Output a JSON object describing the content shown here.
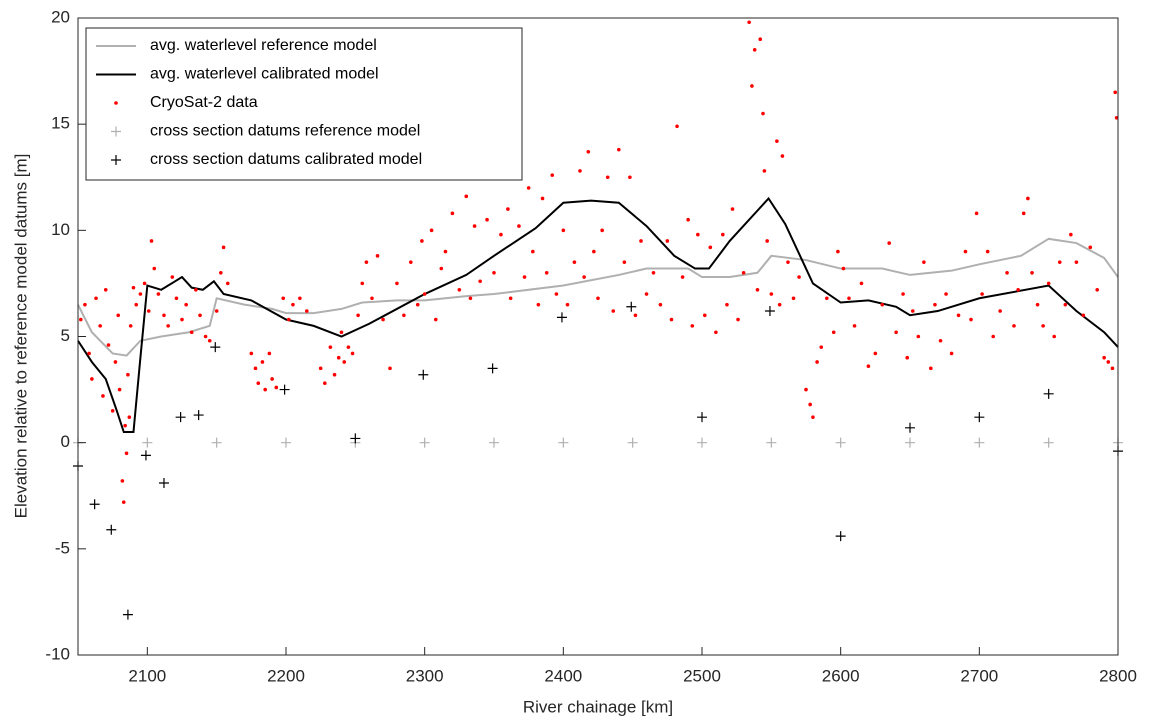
{
  "chart_data": {
    "type": "scatter",
    "x_label": "River chainage [km]",
    "y_label": "Elevation relative to reference model datums [m]",
    "xlim": [
      2050,
      2800
    ],
    "ylim": [
      -10,
      20
    ],
    "xticks": [
      2100,
      2200,
      2300,
      2400,
      2500,
      2600,
      2700,
      2800
    ],
    "yticks": [
      -10,
      -5,
      0,
      5,
      10,
      15,
      20
    ],
    "grid": false,
    "legend": "upper left",
    "series": [
      {
        "name": "avg. waterlevel reference model",
        "color": "#b0b0b0",
        "style": "line",
        "x": [
          2050,
          2060,
          2075,
          2085,
          2095,
          2110,
          2130,
          2145,
          2150,
          2170,
          2190,
          2200,
          2220,
          2240,
          2255,
          2280,
          2300,
          2330,
          2350,
          2400,
          2440,
          2460,
          2490,
          2500,
          2520,
          2540,
          2550,
          2575,
          2600,
          2630,
          2650,
          2680,
          2700,
          2730,
          2750,
          2770,
          2790,
          2800
        ],
        "values": [
          6.5,
          5.2,
          4.2,
          4.1,
          4.8,
          5.0,
          5.2,
          5.5,
          6.8,
          6.5,
          6.3,
          6.1,
          6.1,
          6.3,
          6.6,
          6.7,
          6.7,
          6.9,
          7.0,
          7.4,
          7.9,
          8.2,
          8.2,
          7.8,
          7.8,
          8.0,
          8.8,
          8.6,
          8.2,
          8.2,
          7.9,
          8.1,
          8.4,
          8.8,
          9.6,
          9.4,
          8.7,
          7.8
        ]
      },
      {
        "name": "avg. waterlevel calibrated model",
        "color": "#000000",
        "style": "line",
        "x": [
          2050,
          2060,
          2070,
          2078,
          2083,
          2090,
          2095,
          2100,
          2110,
          2120,
          2125,
          2132,
          2140,
          2148,
          2155,
          2175,
          2200,
          2220,
          2240,
          2260,
          2300,
          2330,
          2350,
          2380,
          2400,
          2420,
          2440,
          2460,
          2480,
          2495,
          2505,
          2520,
          2548,
          2560,
          2580,
          2600,
          2620,
          2640,
          2650,
          2670,
          2700,
          2750,
          2770,
          2790,
          2800
        ],
        "values": [
          4.8,
          3.8,
          3.0,
          1.5,
          0.5,
          0.5,
          4.0,
          7.4,
          7.2,
          7.6,
          7.8,
          7.3,
          7.2,
          7.6,
          7.0,
          6.7,
          5.8,
          5.5,
          5.0,
          5.6,
          7.0,
          7.9,
          8.8,
          10.1,
          11.3,
          11.4,
          11.3,
          10.2,
          8.8,
          8.2,
          8.2,
          9.5,
          11.5,
          10.3,
          7.5,
          6.6,
          6.7,
          6.4,
          6.0,
          6.2,
          6.8,
          7.4,
          6.2,
          5.2,
          4.5
        ]
      },
      {
        "name": "CryoSat-2 data",
        "color": "#ff0000",
        "style": "dot",
        "x": [
          2052,
          2055,
          2058,
          2060,
          2063,
          2066,
          2068,
          2070,
          2072,
          2075,
          2077,
          2079,
          2080,
          2082,
          2083,
          2084,
          2085,
          2086,
          2087,
          2088,
          2090,
          2092,
          2095,
          2098,
          2101,
          2103,
          2105,
          2108,
          2112,
          2115,
          2118,
          2121,
          2125,
          2128,
          2132,
          2135,
          2138,
          2142,
          2145,
          2150,
          2153,
          2155,
          2158,
          2175,
          2178,
          2180,
          2183,
          2185,
          2188,
          2190,
          2193,
          2198,
          2202,
          2205,
          2210,
          2215,
          2225,
          2228,
          2232,
          2235,
          2238,
          2240,
          2242,
          2245,
          2248,
          2252,
          2255,
          2258,
          2262,
          2266,
          2270,
          2275,
          2280,
          2285,
          2290,
          2295,
          2298,
          2300,
          2305,
          2308,
          2312,
          2315,
          2320,
          2325,
          2330,
          2333,
          2336,
          2340,
          2345,
          2350,
          2355,
          2360,
          2362,
          2368,
          2372,
          2375,
          2378,
          2382,
          2385,
          2388,
          2392,
          2395,
          2400,
          2403,
          2408,
          2412,
          2415,
          2418,
          2422,
          2425,
          2428,
          2432,
          2436,
          2440,
          2444,
          2448,
          2452,
          2456,
          2460,
          2465,
          2470,
          2475,
          2478,
          2482,
          2486,
          2490,
          2493,
          2497,
          2502,
          2506,
          2510,
          2515,
          2518,
          2522,
          2526,
          2530,
          2534,
          2536,
          2538,
          2540,
          2542,
          2544,
          2545,
          2547,
          2550,
          2554,
          2556,
          2558,
          2562,
          2566,
          2570,
          2575,
          2578,
          2580,
          2583,
          2586,
          2590,
          2595,
          2598,
          2602,
          2606,
          2610,
          2615,
          2620,
          2625,
          2630,
          2635,
          2640,
          2645,
          2648,
          2652,
          2656,
          2660,
          2665,
          2668,
          2672,
          2676,
          2680,
          2685,
          2690,
          2694,
          2698,
          2702,
          2706,
          2710,
          2715,
          2720,
          2725,
          2728,
          2732,
          2735,
          2738,
          2742,
          2746,
          2750,
          2754,
          2758,
          2762,
          2766,
          2770,
          2775,
          2780,
          2785,
          2790,
          2793,
          2796,
          2798,
          2799
        ],
        "values": [
          5.8,
          6.5,
          4.2,
          3.0,
          6.8,
          5.5,
          2.2,
          7.2,
          4.6,
          1.5,
          3.8,
          6.0,
          2.5,
          -1.8,
          -2.8,
          0.8,
          -0.5,
          3.2,
          1.2,
          5.5,
          7.3,
          6.5,
          7.0,
          7.5,
          6.2,
          9.5,
          8.2,
          7.0,
          6.0,
          5.5,
          7.8,
          6.8,
          5.8,
          6.5,
          5.2,
          7.2,
          6.0,
          5.0,
          4.8,
          6.2,
          8.0,
          9.2,
          7.5,
          4.2,
          3.5,
          2.8,
          3.8,
          2.5,
          4.2,
          3.0,
          2.6,
          6.8,
          5.8,
          6.5,
          6.8,
          6.2,
          3.5,
          2.8,
          4.5,
          3.2,
          4.0,
          5.2,
          3.8,
          4.5,
          4.2,
          6.0,
          7.5,
          8.5,
          6.8,
          8.8,
          5.8,
          3.5,
          7.5,
          6.0,
          8.5,
          6.5,
          9.5,
          7.0,
          10.0,
          5.8,
          8.2,
          9.0,
          10.8,
          7.2,
          11.6,
          6.8,
          10.2,
          7.6,
          10.5,
          8.0,
          9.8,
          11.0,
          6.8,
          10.2,
          7.8,
          12.0,
          9.0,
          6.5,
          11.5,
          8.0,
          12.6,
          7.0,
          10.0,
          6.5,
          8.5,
          12.8,
          7.8,
          13.7,
          9.0,
          6.8,
          10.0,
          12.5,
          6.2,
          13.8,
          8.5,
          12.5,
          6.0,
          9.5,
          7.0,
          8.0,
          6.5,
          9.5,
          5.8,
          14.9,
          7.8,
          10.5,
          5.5,
          9.8,
          6.0,
          9.2,
          5.2,
          9.8,
          6.5,
          11.0,
          5.8,
          8.0,
          19.8,
          16.8,
          18.5,
          7.2,
          19.0,
          15.5,
          12.8,
          9.5,
          7.0,
          14.2,
          6.5,
          13.5,
          8.5,
          6.8,
          7.8,
          2.5,
          1.8,
          1.2,
          3.8,
          4.5,
          6.8,
          5.2,
          9.0,
          8.2,
          6.8,
          5.5,
          7.5,
          3.6,
          4.2,
          6.5,
          9.4,
          5.2,
          7.0,
          4.0,
          6.2,
          5.0,
          8.5,
          3.5,
          6.5,
          4.8,
          7.0,
          4.2,
          6.0,
          9.0,
          5.8,
          10.8,
          7.0,
          9.0,
          5.0,
          6.2,
          8.0,
          5.5,
          7.2,
          10.8,
          11.5,
          8.0,
          6.5,
          5.5,
          7.5,
          5.0,
          8.5,
          6.5,
          9.8,
          8.5,
          6.0,
          9.2,
          7.2,
          4.0,
          3.8,
          3.5,
          16.5,
          15.3
        ]
      },
      {
        "name": "cross section datums reference model",
        "color": "#b0b0b0",
        "style": "plus",
        "x": [
          2050,
          2100,
          2150,
          2200,
          2250,
          2300,
          2350,
          2400,
          2450,
          2500,
          2550,
          2600,
          2650,
          2700,
          2750,
          2800
        ],
        "values": [
          0,
          0,
          0,
          0,
          0,
          0,
          0,
          0,
          0,
          0,
          0,
          0,
          0,
          0,
          0,
          0
        ]
      },
      {
        "name": "cross section datums calibrated model",
        "color": "#000000",
        "style": "plus",
        "x": [
          2050,
          2062,
          2074,
          2086,
          2099,
          2112,
          2124,
          2137,
          2149,
          2199,
          2250,
          2299,
          2349,
          2399,
          2449,
          2500,
          2549,
          2600,
          2650,
          2700,
          2750,
          2800
        ],
        "values": [
          -1.1,
          -2.9,
          -4.1,
          -8.1,
          -0.6,
          -1.9,
          1.2,
          1.3,
          4.5,
          2.5,
          0.2,
          3.2,
          3.5,
          5.9,
          6.4,
          1.2,
          6.2,
          -4.4,
          0.7,
          1.2,
          2.3,
          -0.4
        ]
      }
    ]
  }
}
